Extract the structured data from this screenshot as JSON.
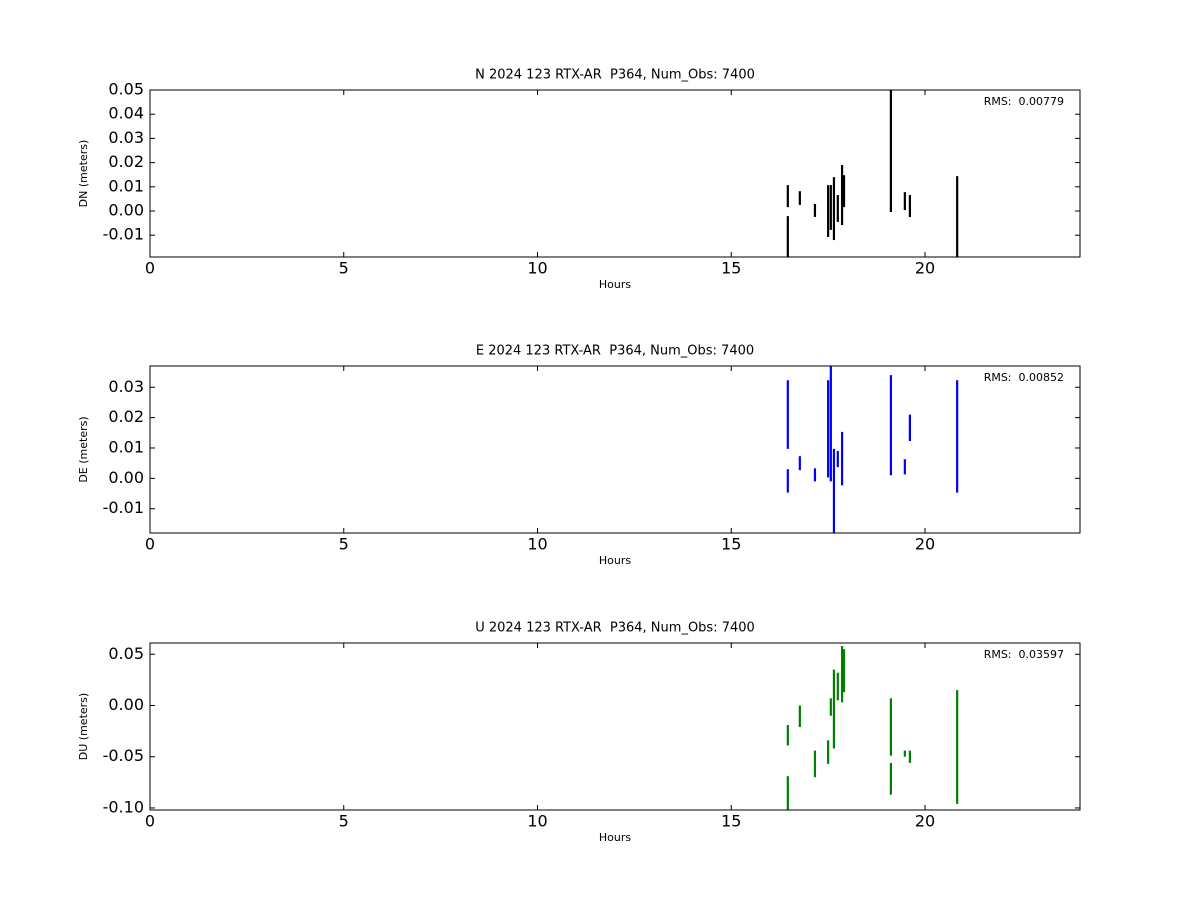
{
  "chart_data": [
    {
      "type": "range",
      "title": "N 2024 123 RTX-AR  P364, Num_Obs: 7400",
      "xlabel": "Hours",
      "ylabel": "DN (meters)",
      "annotation": "RMS:  0.00779",
      "color": "#000000",
      "x": [
        16.46,
        16.46,
        16.77,
        17.16,
        17.5,
        17.57,
        17.65,
        17.75,
        17.86,
        17.91,
        19.12,
        19.48,
        19.61,
        20.83
      ],
      "low": [
        0.0016,
        -0.019,
        0.0025,
        -0.0025,
        -0.0107,
        -0.0078,
        -0.012,
        -0.0045,
        -0.0058,
        0.0016,
        -0.0004,
        0.0004,
        -0.0025,
        -0.019
      ],
      "high": [
        0.0107,
        -0.0021,
        0.0082,
        0.0029,
        0.0107,
        0.0107,
        0.014,
        0.0066,
        0.019,
        0.0148,
        0.05,
        0.0078,
        0.0066,
        0.0144
      ],
      "xlim": [
        0,
        24
      ],
      "xticks": [
        0,
        5,
        10,
        15,
        20
      ],
      "ylim": [
        -0.019,
        0.05
      ],
      "yticks": [
        -0.01,
        {
          "value": 0,
          "label": "0.00"
        },
        0.01,
        0.02,
        0.03,
        0.04,
        0.05
      ]
    },
    {
      "type": "range",
      "title": "E 2024 123 RTX-AR  P364, Num_Obs: 7400",
      "xlabel": "Hours",
      "ylabel": "DE (meters)",
      "annotation": "RMS:  0.00852",
      "color": "#0000ff",
      "x": [
        16.46,
        16.46,
        16.77,
        17.16,
        17.5,
        17.57,
        17.65,
        17.75,
        17.86,
        19.12,
        19.48,
        19.61,
        20.83
      ],
      "low": [
        0.0097,
        -0.0047,
        0.0027,
        -0.001,
        0.0003,
        -0.001,
        -0.018,
        0.0037,
        -0.0023,
        0.001,
        0.0013,
        0.0123,
        -0.0047
      ],
      "high": [
        0.0323,
        0.003,
        0.0073,
        0.0033,
        0.0323,
        0.037,
        0.0097,
        0.009,
        0.0153,
        0.034,
        0.0063,
        0.021,
        0.0323
      ],
      "xlim": [
        0,
        24
      ],
      "xticks": [
        0,
        5,
        10,
        15,
        20
      ],
      "ylim": [
        -0.018,
        0.037
      ],
      "yticks": [
        -0.01,
        {
          "value": 0,
          "label": "0.00"
        },
        0.01,
        0.02,
        0.03
      ]
    },
    {
      "type": "range",
      "title": "U 2024 123 RTX-AR  P364, Num_Obs: 7400",
      "xlabel": "Hours",
      "ylabel": "DU (meters)",
      "annotation": "RMS:  0.03597",
      "color": "#008000",
      "x": [
        16.46,
        16.46,
        16.77,
        17.16,
        17.5,
        17.57,
        17.65,
        17.75,
        17.86,
        17.91,
        19.12,
        19.12,
        19.48,
        19.61,
        20.83
      ],
      "low": [
        -0.039,
        -0.102,
        -0.021,
        -0.07,
        -0.057,
        -0.01,
        -0.042,
        0.005,
        0.003,
        0.013,
        -0.049,
        -0.087,
        -0.05,
        -0.056,
        -0.096
      ],
      "high": [
        -0.019,
        -0.069,
        0.0,
        -0.044,
        -0.034,
        0.007,
        0.035,
        0.032,
        0.058,
        0.055,
        0.007,
        -0.056,
        -0.044,
        -0.044,
        0.015
      ],
      "xlim": [
        0,
        24
      ],
      "xticks": [
        0,
        5,
        10,
        15,
        20
      ],
      "ylim": [
        -0.102,
        0.061
      ],
      "yticks": [
        {
          "value": -0.1,
          "label": "-0.10"
        },
        -0.05,
        {
          "value": 0,
          "label": "0.00"
        },
        0.05
      ]
    }
  ]
}
